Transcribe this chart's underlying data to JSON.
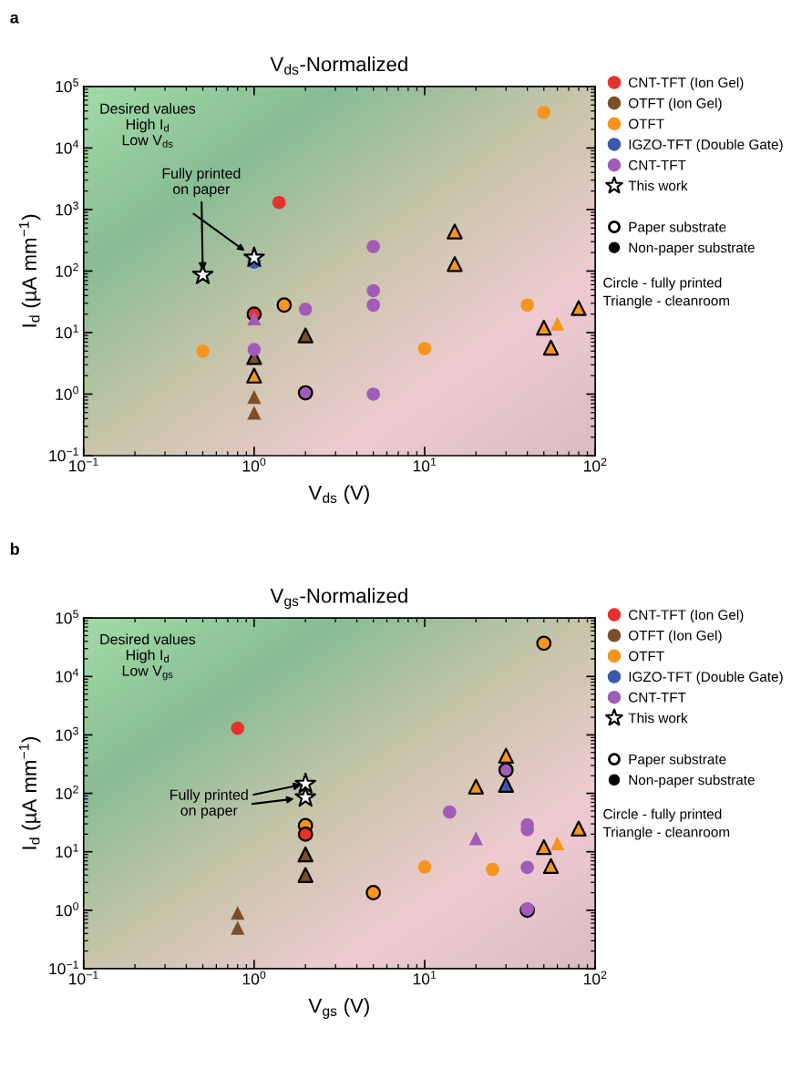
{
  "chart_data": [
    {
      "type": "scatter",
      "title": "V$_{ds}$-Normalized",
      "xlabel": "V$_{ds}$ (V)",
      "ylabel": "I$_{d}$ (µA mm$^{−1}$)",
      "log": "xy",
      "legend": "right",
      "xlim": [
        0.1,
        100
      ],
      "ylim": [
        0.1,
        100000
      ],
      "xticks": [
        {
          "value": 0.1,
          "label": "10$^{−1}$"
        },
        {
          "value": 1,
          "label": "10$^{0}$"
        },
        {
          "value": 10,
          "label": "10$^{1}$"
        },
        {
          "value": 100,
          "label": "10$^{2}$"
        }
      ],
      "yticks": [
        {
          "value": 0.1,
          "label": "10$^{−1}$"
        },
        {
          "value": 1,
          "label": "10$^{0}$"
        },
        {
          "value": 10,
          "label": "10$^{1}$"
        },
        {
          "value": 100,
          "label": "10$^{2}$"
        },
        {
          "value": 1000,
          "label": "10$^{3}$"
        },
        {
          "value": 10000,
          "label": "10$^{4}$"
        },
        {
          "value": 100000,
          "label": "10$^{5}$"
        }
      ],
      "annotations": [
        "Desired values\nHigh I$_{d}$\nLow V$_{ds}$",
        {
          "text": "Fully printed\non paper",
          "x": 0.5,
          "y": 87
        },
        "Paper substrate",
        "Non-paper substrate",
        "Circle - fully printed\nTriangle - cleanroom",
        "a"
      ],
      "series": [
        {
          "name": "CNT-TFT (Ion Gel)",
          "color": "#e8312a",
          "marker": "circle",
          "x": [
            1.4
          ],
          "values": [
            1300
          ]
        },
        {
          "color": "#e8312a",
          "marker": "circle",
          "line_style": "solid",
          "x": [
            1
          ],
          "values": [
            20
          ]
        },
        {
          "name": "OTFT (Ion Gel)",
          "color": "#7a4f2a",
          "marker": "triangle",
          "line_style": "solid",
          "x": [
            2,
            1
          ],
          "values": [
            9,
            4
          ]
        },
        {
          "color": "#7a4f2a",
          "marker": "triangle",
          "x": [
            1,
            1
          ],
          "values": [
            0.9,
            0.5
          ]
        },
        {
          "name": "OTFT",
          "color": "#f7941d",
          "marker": "circle",
          "x": [
            50,
            40,
            10,
            0.5
          ],
          "values": [
            38000,
            28,
            5.5,
            5
          ]
        },
        {
          "color": "#f7941d",
          "marker": "circle",
          "line_style": "solid",
          "x": [
            1.5
          ],
          "values": [
            28
          ]
        },
        {
          "color": "#f7941d",
          "marker": "triangle",
          "line_style": "solid",
          "x": [
            15,
            15,
            80,
            50,
            55,
            1
          ],
          "values": [
            440,
            130,
            25,
            12,
            5.7,
            2
          ]
        },
        {
          "color": "#f7941d",
          "marker": "triangle",
          "x": [
            60
          ],
          "values": [
            14
          ]
        },
        {
          "name": "IGZO-TFT (Double Gate)",
          "color": "#3a5ba9",
          "marker": "circle",
          "x": [
            1
          ],
          "values": [
            140
          ]
        },
        {
          "name": "CNT-TFT",
          "color": "#a05cb8",
          "marker": "circle",
          "x": [
            5,
            5,
            5,
            2,
            1,
            5
          ],
          "values": [
            250,
            48,
            28,
            24,
            5.3,
            1.0
          ]
        },
        {
          "color": "#a05cb8",
          "marker": "circle",
          "line_style": "solid",
          "x": [
            2
          ],
          "values": [
            1.05
          ]
        },
        {
          "color": "#a05cb8",
          "marker": "triangle",
          "x": [
            1
          ],
          "values": [
            17
          ]
        },
        {
          "name": "This work",
          "color": "#000000",
          "marker": "star",
          "line_style": "solid",
          "x": [
            0.5,
            1
          ],
          "values": [
            87,
            165
          ]
        }
      ]
    },
    {
      "type": "scatter",
      "title": "V$_{gs}$-Normalized",
      "xlabel": "V$_{gs}$ (V)",
      "ylabel": "I$_{d}$ (µA mm$^{−1}$)",
      "log": "xy",
      "legend": "right",
      "xlim": [
        0.1,
        100
      ],
      "ylim": [
        0.1,
        100000
      ],
      "xticks": [
        {
          "value": 0.1,
          "label": "10$^{−1}$"
        },
        {
          "value": 1,
          "label": "10$^{0}$"
        },
        {
          "value": 10,
          "label": "10$^{1}$"
        },
        {
          "value": 100,
          "label": "10$^{2}$"
        }
      ],
      "yticks": [
        {
          "value": 0.1,
          "label": "10$^{−1}$"
        },
        {
          "value": 1,
          "label": "10$^{0}$"
        },
        {
          "value": 10,
          "label": "10$^{1}$"
        },
        {
          "value": 100,
          "label": "10$^{2}$"
        },
        {
          "value": 1000,
          "label": "10$^{3}$"
        },
        {
          "value": 10000,
          "label": "10$^{4}$"
        },
        {
          "value": 100000,
          "label": "10$^{5}$"
        }
      ],
      "annotations": [
        "Desired values\nHigh I$_{d}$\nLow V$_{gs}$",
        {
          "text": "Fully printed\non paper",
          "x": 2,
          "y": 145
        },
        "Paper substrate",
        "Non-paper substrate",
        "Circle - fully printed\nTriangle - cleanroom",
        "b"
      ],
      "series": [
        {
          "name": "CNT-TFT (Ion Gel)",
          "color": "#e8312a",
          "marker": "circle",
          "x": [
            0.8
          ],
          "values": [
            1300
          ]
        },
        {
          "name": "OTFT (Ion Gel)",
          "color": "#7a4f2a",
          "marker": "triangle",
          "line_style": "solid",
          "x": [
            2,
            2
          ],
          "values": [
            9,
            4
          ]
        },
        {
          "color": "#7a4f2a",
          "marker": "triangle",
          "x": [
            0.8,
            0.8
          ],
          "values": [
            0.9,
            0.5
          ]
        },
        {
          "name": "OTFT",
          "color": "#f7941d",
          "marker": "circle",
          "line_style": "solid",
          "x": [
            50,
            2,
            5
          ],
          "values": [
            37000,
            28,
            2
          ]
        },
        {
          "color": "#e8312a",
          "marker": "circle",
          "line_style": "solid",
          "x": [
            2
          ],
          "values": [
            20
          ]
        },
        {
          "color": "#f7941d",
          "marker": "circle",
          "x": [
            10,
            25
          ],
          "values": [
            5.5,
            5
          ]
        },
        {
          "color": "#f7941d",
          "marker": "triangle",
          "line_style": "solid",
          "x": [
            30,
            20,
            80,
            50,
            55
          ],
          "values": [
            440,
            130,
            25,
            12,
            5.7
          ]
        },
        {
          "color": "#f7941d",
          "marker": "triangle",
          "x": [
            60
          ],
          "values": [
            14
          ]
        },
        {
          "name": "IGZO-TFT (Double Gate)",
          "color": "#3a5ba9",
          "marker": "triangle",
          "line_style": "solid",
          "x": [
            30
          ],
          "values": [
            140
          ]
        },
        {
          "name": "CNT-TFT",
          "color": "#a05cb8",
          "marker": "circle",
          "line_style": "solid",
          "x": [
            30,
            40
          ],
          "values": [
            250,
            1.0
          ]
        },
        {
          "color": "#a05cb8",
          "marker": "circle",
          "x": [
            14,
            40,
            40,
            40,
            40
          ],
          "values": [
            48,
            29,
            24,
            5.4,
            1.05
          ]
        },
        {
          "color": "#a05cb8",
          "marker": "triangle",
          "x": [
            20
          ],
          "values": [
            17
          ]
        },
        {
          "name": "This work",
          "color": "#000000",
          "marker": "star",
          "line_style": "solid",
          "x": [
            2,
            2
          ],
          "values": [
            145,
            85
          ]
        }
      ]
    }
  ]
}
